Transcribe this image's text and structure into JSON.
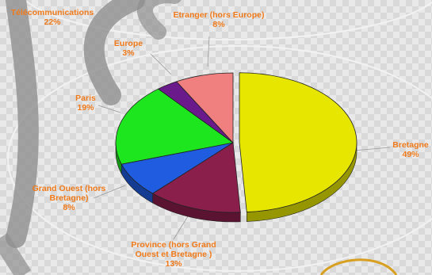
{
  "chart_data": {
    "type": "pie",
    "title": "",
    "legend": "none",
    "slices": [
      {
        "id": "bretagne",
        "label_lines": [
          "Bretagne"
        ],
        "percent_text": "49%",
        "value": 49,
        "color": "#e6e600",
        "exploded": true
      },
      {
        "id": "province",
        "label_lines": [
          "Province (hors Grand",
          "Ouest et Bretagne )"
        ],
        "percent_text": "13%",
        "value": 13,
        "color": "#8a1f4c",
        "exploded": false
      },
      {
        "id": "grand-ouest",
        "label_lines": [
          "Grand Ouest (hors",
          "Bretagne)"
        ],
        "percent_text": "8%",
        "value": 8,
        "color": "#1f5ce0",
        "exploded": false
      },
      {
        "id": "paris",
        "label_lines": [
          "Paris"
        ],
        "percent_text": "19%",
        "value": 19,
        "color": "#1ee61e",
        "exploded": false
      },
      {
        "id": "europe",
        "label_lines": [
          "Europe"
        ],
        "percent_text": "3%",
        "value": 3,
        "color": "#6a1a8a",
        "exploded": false
      },
      {
        "id": "etranger",
        "label_lines": [
          "Etranger (hors Europe)"
        ],
        "percent_text": "8%",
        "value": 8,
        "color": "#f08080",
        "exploded": false
      }
    ],
    "other_label": {
      "id": "telecommunications",
      "label_lines": [
        "Télécommunications"
      ],
      "percent_text": "22%"
    }
  },
  "colors": {
    "label": "#f07a1a",
    "leader": "#9a9a9a"
  }
}
